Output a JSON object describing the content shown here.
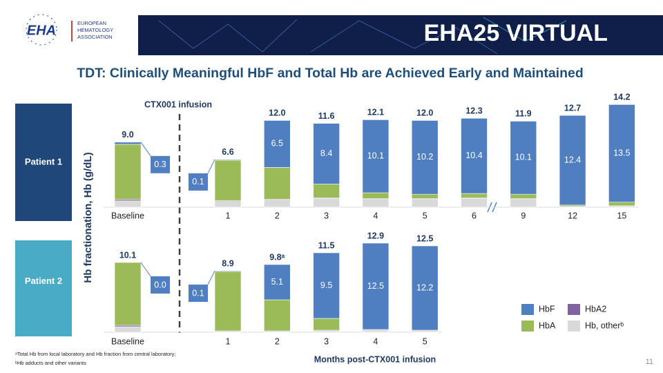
{
  "header": {
    "logo": "EHA",
    "organization": [
      "EUROPEAN",
      "HEMATOLOGY",
      "ASSOCIATION"
    ],
    "event": "EHA25 VIRTUAL"
  },
  "title": "TDT: Clinically Meaningful HbF and Total Hb are Achieved Early and Maintained",
  "chart_data": [
    {
      "type": "bar",
      "stacked": true,
      "title": "Patient 1",
      "y_label": "Hb fractionation, Hb (g/dL)",
      "annotation": "CTX001 infusion",
      "categories": [
        "Baseline",
        "1",
        "2",
        "3",
        "4",
        "5",
        "6",
        "9",
        "12",
        "15"
      ],
      "ylim": [
        0,
        15
      ],
      "series": [
        {
          "name": "HbF",
          "color": "#4f7fc0",
          "values": [
            0.3,
            0.1,
            6.5,
            8.4,
            10.1,
            10.2,
            10.4,
            10.1,
            12.4,
            13.5
          ],
          "value_labels": [
            "0.3",
            "0.1",
            "6.5",
            "8.4",
            "10.1",
            "10.2",
            "10.4",
            "10.1",
            "12.4",
            "13.5"
          ]
        },
        {
          "name": "HbA2",
          "color": "#8064a2",
          "values": [
            0.2,
            0.1,
            0.1,
            0.1,
            0.1,
            0.1,
            0.1,
            0.1,
            0.0,
            0.0
          ]
        },
        {
          "name": "HbA",
          "color": "#9bbb59",
          "values": [
            7.6,
            5.6,
            4.4,
            1.9,
            0.8,
            0.6,
            0.6,
            0.6,
            0.2,
            0.5
          ]
        },
        {
          "name": "Hb, otherᵇ",
          "color": "#d9d9d9",
          "values": [
            0.9,
            0.8,
            1.0,
            1.2,
            1.1,
            1.1,
            1.2,
            1.1,
            0.1,
            0.2
          ]
        }
      ],
      "total_labels": [
        "9.0",
        "6.6",
        "12.0",
        "11.6",
        "12.1",
        "12.0",
        "12.3",
        "11.9",
        "12.7",
        "14.2"
      ]
    },
    {
      "type": "bar",
      "stacked": true,
      "title": "Patient 2",
      "x_label": "Months post-CTX001 infusion",
      "categories": [
        "Baseline",
        "1",
        "2",
        "3",
        "4",
        "5"
      ],
      "ylim": [
        0,
        15
      ],
      "series": [
        {
          "color": "#4f7fc0",
          "values": [
            0.0,
            0.1,
            5.1,
            9.5,
            12.5,
            12.2
          ],
          "value_labels": [
            "0.0",
            "0.1",
            "5.1",
            "9.5",
            "12.5",
            "12.2"
          ]
        },
        {
          "color": "#8064a2",
          "values": [
            0.2,
            0.1,
            0.1,
            0.1,
            0.1,
            0.1
          ]
        },
        {
          "color": "#9bbb59",
          "values": [
            9.1,
            8.6,
            4.5,
            1.7,
            0.1,
            0.1
          ]
        },
        {
          "color": "#d9d9d9",
          "values": [
            0.8,
            0.1,
            0.1,
            0.2,
            0.2,
            0.1
          ]
        }
      ],
      "total_labels": [
        "10.1",
        "8.9",
        "9.8ᵃ",
        "11.5",
        "12.9",
        "12.5"
      ]
    }
  ],
  "footnotes": [
    "ᵃTotal Hb from local laboratory and Hb fraction from central laboratory;",
    "ᵇHb adducts and other variants"
  ],
  "page_number": 11
}
